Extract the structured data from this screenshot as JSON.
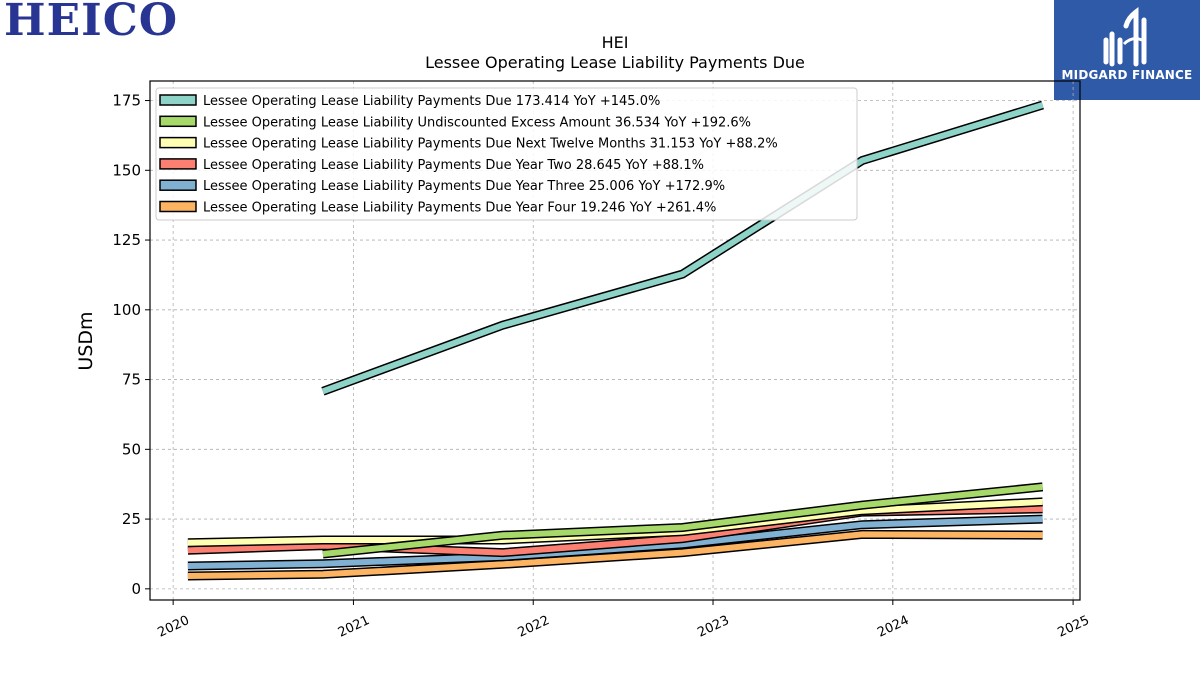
{
  "brand": {
    "logo_text": "HEICO",
    "badge_text": "MIDGARD FINANCE",
    "badge_color": "#2f5aa8",
    "logo_color": "#283593"
  },
  "chart_data": {
    "type": "line",
    "ticker": "HEI",
    "title": "Lessee Operating Lease Liability Payments Due",
    "ylabel": "USDm",
    "xlabel": "",
    "xlim": [
      "2019-11-15",
      "2025-01-15"
    ],
    "ylim": [
      -4,
      182
    ],
    "xticks": [
      "2020",
      "2021",
      "2022",
      "2023",
      "2024",
      "2025"
    ],
    "yticks": [
      0,
      25,
      50,
      75,
      100,
      125,
      150,
      175
    ],
    "grid": true,
    "legend_position": "top-left",
    "series": [
      {
        "name": "Lessee Operating Lease Liability Payments Due",
        "label": "Lessee Operating Lease Liability Payments Due  173.414 YoY +145.0%",
        "color": "#8dd3c7",
        "x": [
          "2020-10-31",
          "2021-10-31",
          "2022-10-31",
          "2023-10-31",
          "2024-10-31"
        ],
        "y": [
          70.8,
          94.5,
          112.8,
          153.5,
          173.414
        ]
      },
      {
        "name": "Lessee Operating Lease Liability Undiscounted Excess Amount",
        "label": "Lessee Operating Lease Liability Undiscounted Excess Amount  36.534 YoY +192.6%",
        "color": "#a6d96a",
        "x": [
          "2020-10-31",
          "2021-10-31",
          "2022-10-31",
          "2023-10-31",
          "2024-10-31"
        ],
        "y": [
          12.5,
          19.2,
          22.0,
          30.0,
          36.534
        ]
      },
      {
        "name": "Lessee Operating Lease Liability Payments Due Next Twelve Months",
        "label": "Lessee Operating Lease Liability Payments Due Next Twelve Months  31.153 YoY +88.2%",
        "color": "#ffffb3",
        "x": [
          "2020-01-31",
          "2020-10-31",
          "2021-10-31",
          "2022-10-31",
          "2023-10-31",
          "2024-10-31"
        ],
        "y": [
          16.5,
          17.5,
          17.5,
          20.5,
          28.0,
          31.153
        ]
      },
      {
        "name": "Lessee Operating Lease Liability Payments Due Year Two",
        "label": "Lessee Operating Lease Liability Payments Due Year Two  28.645 YoY +88.1%",
        "color": "#fb8072",
        "x": [
          "2020-01-31",
          "2020-10-31",
          "2021-10-31",
          "2022-10-31",
          "2023-10-31",
          "2024-10-31"
        ],
        "y": [
          13.8,
          15.5,
          13.0,
          18.0,
          27.5,
          28.645
        ]
      },
      {
        "name": "Lessee Operating Lease Liability Payments Due Year Three",
        "label": "Lessee Operating Lease Liability Payments Due Year Three  25.006 YoY +172.9%",
        "color": "#80b1d3",
        "x": [
          "2020-01-31",
          "2020-10-31",
          "2021-10-31",
          "2022-10-31",
          "2023-10-31",
          "2024-10-31"
        ],
        "y": [
          8.2,
          9.0,
          11.5,
          16.0,
          23.0,
          25.006
        ]
      },
      {
        "name": "Lessee Operating Lease Liability Payments Due Year Four",
        "label": "Lessee Operating Lease Liability Payments Due Year Four  19.246 YoY +261.4%",
        "color": "#fdb462",
        "x": [
          "2020-01-31",
          "2020-10-31",
          "2021-10-31",
          "2022-10-31",
          "2023-10-31",
          "2024-10-31"
        ],
        "y": [
          4.6,
          5.2,
          8.8,
          13.0,
          19.5,
          19.246
        ]
      }
    ]
  }
}
